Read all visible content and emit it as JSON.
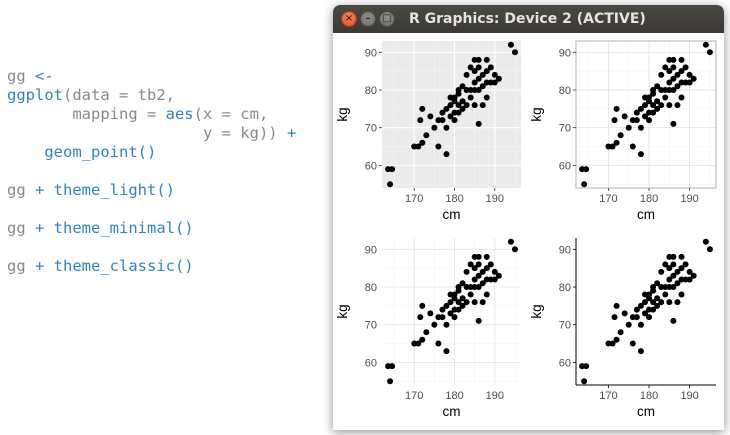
{
  "code": {
    "lines": [
      [
        {
          "t": "gg ",
          "c": "gray"
        },
        {
          "t": "<-",
          "c": "blue"
        }
      ],
      [
        {
          "t": "ggplot",
          "c": "blue"
        },
        {
          "t": "(data = tb2,",
          "c": "gray"
        }
      ],
      [
        {
          "t": "       mapping = ",
          "c": "gray"
        },
        {
          "t": "aes",
          "c": "blue"
        },
        {
          "t": "(x = cm,",
          "c": "gray"
        }
      ],
      [
        {
          "t": "                     y = kg)) ",
          "c": "gray"
        },
        {
          "t": "+",
          "c": "blue"
        }
      ],
      [
        {
          "t": "    geom_point()",
          "c": "blue"
        }
      ],
      [
        {
          "t": "gg ",
          "c": "gray"
        },
        {
          "t": "+ theme_light()",
          "c": "blue"
        }
      ],
      [
        {
          "t": "gg ",
          "c": "gray"
        },
        {
          "t": "+ theme_minimal()",
          "c": "blue"
        }
      ],
      [
        {
          "t": "gg ",
          "c": "gray"
        },
        {
          "t": "+ theme_classic()",
          "c": "blue"
        }
      ]
    ]
  },
  "window": {
    "title": "R Graphics: Device 2 (ACTIVE)",
    "buttons": {
      "close": "×",
      "minimize": "–",
      "maximize": "□"
    }
  },
  "colors": {
    "code_gray": "#8a8a8a",
    "code_blue": "#2f84c8",
    "titlebar": "#3c3b37",
    "close_button": "#e95420",
    "point": "#000000",
    "gray_panel": "#ebebeb"
  },
  "icons": [
    "close-icon",
    "minimize-icon",
    "maximize-icon"
  ],
  "chart_data": [
    {
      "type": "scatter",
      "theme": "gray",
      "xlabel": "cm",
      "ylabel": "kg",
      "xticks": [
        170,
        180,
        190
      ],
      "yticks": [
        60,
        70,
        80,
        90
      ],
      "xlim": [
        162,
        196.5
      ],
      "ylim": [
        54,
        93
      ],
      "grid": true,
      "panel_border": false,
      "axis_lines": false,
      "points_ref": "points"
    },
    {
      "type": "scatter",
      "theme": "light",
      "xlabel": "cm",
      "ylabel": "kg",
      "xticks": [
        170,
        180,
        190
      ],
      "yticks": [
        60,
        70,
        80,
        90
      ],
      "xlim": [
        162,
        196.5
      ],
      "ylim": [
        54,
        93
      ],
      "grid": true,
      "panel_border": true,
      "axis_lines": false,
      "points_ref": "points"
    },
    {
      "type": "scatter",
      "theme": "minimal",
      "xlabel": "cm",
      "ylabel": "kg",
      "xticks": [
        170,
        180,
        190
      ],
      "yticks": [
        60,
        70,
        80,
        90
      ],
      "xlim": [
        162,
        196.5
      ],
      "ylim": [
        54,
        93
      ],
      "grid": true,
      "panel_border": false,
      "axis_lines": false,
      "points_ref": "points"
    },
    {
      "type": "scatter",
      "theme": "classic",
      "xlabel": "cm",
      "ylabel": "kg",
      "xticks": [
        170,
        180,
        190
      ],
      "yticks": [
        60,
        70,
        80,
        90
      ],
      "xlim": [
        162,
        196.5
      ],
      "ylim": [
        54,
        93
      ],
      "grid": false,
      "panel_border": false,
      "axis_lines": true,
      "points_ref": "points"
    }
  ],
  "points": [
    [
      163.5,
      59
    ],
    [
      164.5,
      59
    ],
    [
      164,
      55
    ],
    [
      170,
      65
    ],
    [
      171,
      65
    ],
    [
      172,
      66
    ],
    [
      171.5,
      72
    ],
    [
      172,
      75
    ],
    [
      173,
      68
    ],
    [
      174,
      73
    ],
    [
      175,
      70
    ],
    [
      176,
      65
    ],
    [
      176,
      72
    ],
    [
      177,
      72
    ],
    [
      177,
      74
    ],
    [
      178,
      70
    ],
    [
      178,
      75
    ],
    [
      178,
      63
    ],
    [
      179,
      73
    ],
    [
      179,
      76
    ],
    [
      179,
      78
    ],
    [
      180,
      72
    ],
    [
      180,
      74
    ],
    [
      180,
      77
    ],
    [
      180,
      78
    ],
    [
      181,
      74
    ],
    [
      181,
      76
    ],
    [
      181,
      79
    ],
    [
      181,
      80
    ],
    [
      182,
      75
    ],
    [
      182,
      77
    ],
    [
      182,
      81
    ],
    [
      183,
      76
    ],
    [
      183,
      80
    ],
    [
      183,
      84
    ],
    [
      184,
      78
    ],
    [
      184,
      80
    ],
    [
      184,
      86
    ],
    [
      185,
      76
    ],
    [
      185,
      80
    ],
    [
      185,
      82
    ],
    [
      185,
      85
    ],
    [
      185,
      88
    ],
    [
      186,
      71
    ],
    [
      186,
      80
    ],
    [
      186,
      83
    ],
    [
      186,
      86
    ],
    [
      186,
      88
    ],
    [
      187,
      76
    ],
    [
      187,
      81
    ],
    [
      187,
      84
    ],
    [
      188,
      78
    ],
    [
      188,
      82
    ],
    [
      188,
      85
    ],
    [
      188,
      88
    ],
    [
      189,
      82
    ],
    [
      189,
      86
    ],
    [
      190,
      82
    ],
    [
      190,
      84
    ],
    [
      191,
      83
    ],
    [
      194,
      92
    ],
    [
      195,
      90
    ]
  ]
}
